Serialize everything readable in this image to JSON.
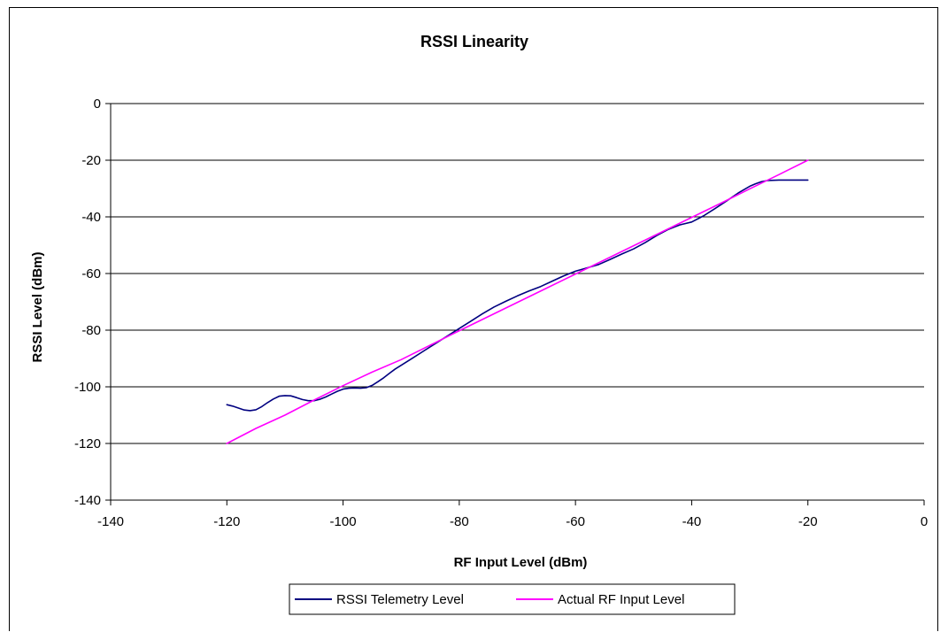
{
  "chart_data": {
    "type": "line",
    "title": "RSSI Linearity",
    "xlabel": "RF Input Level (dBm)",
    "ylabel": "RSSI Level (dBm)",
    "xlim": [
      -140,
      0
    ],
    "ylim": [
      -140,
      0
    ],
    "x_ticks": [
      -140,
      -120,
      -100,
      -80,
      -60,
      -40,
      -20,
      0
    ],
    "y_ticks": [
      0,
      -20,
      -40,
      -60,
      -80,
      -100,
      -120,
      -140
    ],
    "grid": "horizontal major gridlines",
    "legend_position": "bottom",
    "series": [
      {
        "name": "RSSI Telemetry Level",
        "color": "#000080",
        "x": [
          -120,
          -119,
          -118,
          -117,
          -116,
          -115,
          -114,
          -113,
          -112,
          -111,
          -110,
          -109,
          -108,
          -107,
          -106,
          -105,
          -104,
          -103,
          -102,
          -101,
          -100,
          -99,
          -98,
          -97,
          -96,
          -95,
          -94,
          -93,
          -92,
          -91,
          -90,
          -88,
          -86,
          -84,
          -82,
          -80,
          -78,
          -76,
          -74,
          -72,
          -70,
          -68,
          -66,
          -64,
          -62,
          -60,
          -58,
          -56,
          -54,
          -52,
          -50,
          -48,
          -46,
          -44,
          -42,
          -40,
          -38,
          -36,
          -34,
          -32,
          -30,
          -29,
          -28,
          -27,
          -26,
          -25,
          -24,
          -23,
          -22,
          -21,
          -20
        ],
        "y": [
          -106.3,
          -106.8,
          -107.5,
          -108.2,
          -108.4,
          -108.1,
          -107,
          -105.6,
          -104.3,
          -103.3,
          -103.1,
          -103.2,
          -103.8,
          -104.5,
          -104.9,
          -104.9,
          -104.4,
          -103.6,
          -102.6,
          -101.6,
          -100.8,
          -100.5,
          -100.4,
          -100.5,
          -100.3,
          -99.5,
          -98.2,
          -96.8,
          -95.2,
          -93.7,
          -92.4,
          -89.8,
          -87.2,
          -84.6,
          -82,
          -79.4,
          -76.8,
          -74.2,
          -71.8,
          -69.8,
          -67.9,
          -66.2,
          -64.6,
          -62.7,
          -60.8,
          -59.2,
          -58,
          -56.8,
          -55,
          -53.1,
          -51.3,
          -49.1,
          -46.6,
          -44.4,
          -42.8,
          -41.8,
          -39.7,
          -37.1,
          -34.4,
          -31.6,
          -29.2,
          -28.3,
          -27.6,
          -27.2,
          -27.1,
          -27,
          -27,
          -27,
          -27,
          -27,
          -27
        ]
      },
      {
        "name": "Actual RF Input Level",
        "color": "#ff00ff",
        "x": [
          -120,
          -115,
          -110,
          -105,
          -100,
          -95,
          -90,
          -85,
          -80,
          -75,
          -70,
          -65,
          -60,
          -55,
          -50,
          -45,
          -40,
          -35,
          -30,
          -25,
          -20
        ],
        "y": [
          -120,
          -114.7,
          -110,
          -104.7,
          -99.6,
          -94.8,
          -90.4,
          -85.3,
          -80.2,
          -75.2,
          -70.2,
          -65.2,
          -60.2,
          -55.2,
          -50.2,
          -45.2,
          -40.2,
          -35.2,
          -30.1,
          -25.1,
          -20
        ]
      }
    ]
  }
}
